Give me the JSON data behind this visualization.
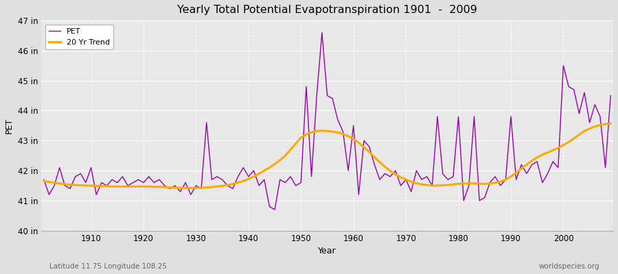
{
  "title": "Yearly Total Potential Evapotranspiration 1901  -  2009",
  "xlabel": "Year",
  "ylabel": "PET",
  "subtitle_left": "Latitude 11.75 Longitude 108.25",
  "subtitle_right": "worldspecies.org",
  "ylim": [
    40,
    47
  ],
  "yticks": [
    40,
    41,
    42,
    43,
    44,
    45,
    46,
    47
  ],
  "ytick_labels": [
    "40 in",
    "41 in",
    "42 in",
    "43 in",
    "44 in",
    "45 in",
    "46 in",
    "47 in"
  ],
  "xticks": [
    1910,
    1920,
    1930,
    1940,
    1950,
    1960,
    1970,
    1980,
    1990,
    2000
  ],
  "pet_color": "#9900aa",
  "trend_color": "#ffaa00",
  "bg_color": "#e0e0e0",
  "plot_bg_color": "#e8e8e8",
  "years": [
    1901,
    1902,
    1903,
    1904,
    1905,
    1906,
    1907,
    1908,
    1909,
    1910,
    1911,
    1912,
    1913,
    1914,
    1915,
    1916,
    1917,
    1918,
    1919,
    1920,
    1921,
    1922,
    1923,
    1924,
    1925,
    1926,
    1927,
    1928,
    1929,
    1930,
    1931,
    1932,
    1933,
    1934,
    1935,
    1936,
    1937,
    1938,
    1939,
    1940,
    1941,
    1942,
    1943,
    1944,
    1945,
    1946,
    1947,
    1948,
    1949,
    1950,
    1951,
    1952,
    1953,
    1954,
    1955,
    1956,
    1957,
    1958,
    1959,
    1960,
    1961,
    1962,
    1963,
    1964,
    1965,
    1966,
    1967,
    1968,
    1969,
    1970,
    1971,
    1972,
    1973,
    1974,
    1975,
    1976,
    1977,
    1978,
    1979,
    1980,
    1981,
    1982,
    1983,
    1984,
    1985,
    1986,
    1987,
    1988,
    1989,
    1990,
    1991,
    1992,
    1993,
    1994,
    1995,
    1996,
    1997,
    1998,
    1999,
    2000,
    2001,
    2002,
    2003,
    2004,
    2005,
    2006,
    2007,
    2008,
    2009
  ],
  "pet_values": [
    41.7,
    41.2,
    41.5,
    42.1,
    41.5,
    41.4,
    41.8,
    41.9,
    41.6,
    42.1,
    41.2,
    41.6,
    41.5,
    41.7,
    41.6,
    41.8,
    41.5,
    41.6,
    41.7,
    41.6,
    41.8,
    41.6,
    41.7,
    41.5,
    41.4,
    41.5,
    41.3,
    41.6,
    41.2,
    41.5,
    41.4,
    43.6,
    41.7,
    41.8,
    41.7,
    41.5,
    41.4,
    41.8,
    42.1,
    41.8,
    42.0,
    41.5,
    41.7,
    40.8,
    40.7,
    41.7,
    41.6,
    41.8,
    41.5,
    41.6,
    44.8,
    41.8,
    44.5,
    46.6,
    44.5,
    44.4,
    43.7,
    43.3,
    42.0,
    43.5,
    41.2,
    43.0,
    42.8,
    42.2,
    41.7,
    41.9,
    41.8,
    42.0,
    41.5,
    41.7,
    41.3,
    42.0,
    41.7,
    41.8,
    41.5,
    43.8,
    41.9,
    41.7,
    41.8,
    43.8,
    41.0,
    41.5,
    43.8,
    41.0,
    41.1,
    41.6,
    41.8,
    41.5,
    41.7,
    43.8,
    41.7,
    42.2,
    41.9,
    42.2,
    42.3,
    41.6,
    41.9,
    42.3,
    42.1,
    45.5,
    44.8,
    44.7,
    43.9,
    44.6,
    43.6,
    44.2,
    43.8,
    42.1,
    44.5
  ],
  "trend_values": [
    41.65,
    41.62,
    41.6,
    41.57,
    41.55,
    41.53,
    41.52,
    41.51,
    41.5,
    41.5,
    41.49,
    41.48,
    41.48,
    41.47,
    41.47,
    41.47,
    41.47,
    41.47,
    41.47,
    41.47,
    41.47,
    41.46,
    41.46,
    41.45,
    41.44,
    41.43,
    41.43,
    41.42,
    41.42,
    41.42,
    41.43,
    41.44,
    41.45,
    41.47,
    41.49,
    41.52,
    41.55,
    41.6,
    41.65,
    41.72,
    41.8,
    41.9,
    42.0,
    42.1,
    42.22,
    42.35,
    42.5,
    42.7,
    42.9,
    43.1,
    43.2,
    43.28,
    43.32,
    43.33,
    43.32,
    43.3,
    43.27,
    43.22,
    43.15,
    43.05,
    42.93,
    42.78,
    42.62,
    42.45,
    42.28,
    42.13,
    41.99,
    41.87,
    41.78,
    41.7,
    41.63,
    41.58,
    41.54,
    41.52,
    41.5,
    41.5,
    41.51,
    41.52,
    41.54,
    41.56,
    41.57,
    41.57,
    41.57,
    41.56,
    41.56,
    41.57,
    41.59,
    41.63,
    41.7,
    41.8,
    41.93,
    42.07,
    42.2,
    42.33,
    42.44,
    42.53,
    42.6,
    42.68,
    42.76,
    42.85,
    42.95,
    43.07,
    43.2,
    43.32,
    43.4,
    43.47,
    43.52,
    43.55,
    43.57
  ]
}
